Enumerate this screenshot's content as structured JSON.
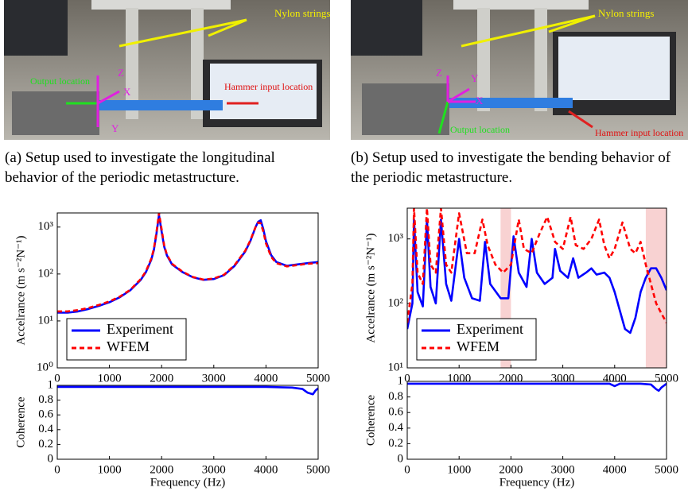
{
  "photos": [
    {
      "strings_label": "Nylon strings",
      "output_label": "Output location",
      "input_label": "Hammer input location",
      "axis_x": "X",
      "axis_y": "Y",
      "axis_z": "Z"
    },
    {
      "strings_label": "Nylon strings",
      "output_label": "Output location",
      "input_label": "Hammer input location",
      "axis_x": "X",
      "axis_y": "Y",
      "axis_z": "Z"
    }
  ],
  "captions": [
    "(a) Setup used to investigate the longitudinal behavior of the periodic metastructure.",
    "(b) Setup used to investigate the bending behavior of the periodic metastructure."
  ],
  "chart_data": [
    {
      "type": "line",
      "ylabel": "Accelrance (m s⁻²N⁻¹)",
      "log_y": true,
      "legend": "lower left",
      "xlim": [
        0,
        5000
      ],
      "xticks": [
        0,
        1000,
        2000,
        3000,
        4000,
        5000
      ],
      "ylim": [
        1,
        2000
      ],
      "yticks": [
        {
          "value": 1,
          "label": "10⁰"
        },
        {
          "value": 10,
          "label": "10¹"
        },
        {
          "value": 100,
          "label": "10²"
        },
        {
          "value": 1000,
          "label": "10³"
        }
      ],
      "series": [
        {
          "name": "Experiment",
          "color": "#0000ff",
          "dashed": false,
          "x": [
            0,
            200,
            400,
            600,
            800,
            1000,
            1200,
            1400,
            1600,
            1700,
            1800,
            1850,
            1900,
            1950,
            2000,
            2050,
            2100,
            2200,
            2400,
            2600,
            2800,
            3000,
            3200,
            3400,
            3600,
            3700,
            3800,
            3850,
            3900,
            3950,
            4000,
            4100,
            4200,
            4400,
            4600,
            4800,
            5000
          ],
          "values": [
            15,
            15,
            16,
            18,
            21,
            25,
            32,
            45,
            75,
            110,
            200,
            320,
            700,
            1800,
            800,
            380,
            250,
            160,
            110,
            85,
            75,
            78,
            95,
            150,
            300,
            500,
            1000,
            1300,
            1400,
            900,
            500,
            250,
            180,
            150,
            160,
            170,
            180
          ]
        },
        {
          "name": "WFEM",
          "color": "#ff0000",
          "dashed": true,
          "x": [
            0,
            200,
            400,
            600,
            800,
            1000,
            1200,
            1400,
            1600,
            1700,
            1800,
            1850,
            1900,
            1950,
            2000,
            2050,
            2100,
            2200,
            2400,
            2600,
            2800,
            3000,
            3200,
            3400,
            3600,
            3700,
            3800,
            3850,
            3900,
            3950,
            4000,
            4100,
            4200,
            4400,
            4600,
            4800,
            5000
          ],
          "values": [
            16,
            16,
            17,
            19,
            22,
            26,
            33,
            46,
            78,
            115,
            210,
            340,
            750,
            2000,
            900,
            400,
            260,
            165,
            112,
            86,
            76,
            80,
            97,
            155,
            310,
            520,
            1000,
            1250,
            1200,
            800,
            450,
            230,
            170,
            145,
            155,
            165,
            170
          ]
        }
      ]
    },
    {
      "type": "line",
      "ylabel": "Coherence",
      "xlabel": "Frequency (Hz)",
      "xlim": [
        0,
        5000
      ],
      "xticks": [
        0,
        1000,
        2000,
        3000,
        4000,
        5000
      ],
      "ylim": [
        0,
        1
      ],
      "yticks": [
        0,
        0.2,
        0.4,
        0.6,
        0.8,
        1
      ],
      "series": [
        {
          "color": "#0000ff",
          "dashed": false,
          "x": [
            0,
            500,
            1000,
            1500,
            2000,
            2500,
            3000,
            3500,
            4000,
            4500,
            4700,
            4800,
            4900,
            4950,
            5000
          ],
          "values": [
            0.98,
            0.98,
            0.98,
            0.98,
            0.98,
            0.98,
            0.98,
            0.98,
            0.98,
            0.97,
            0.95,
            0.9,
            0.88,
            0.93,
            0.96
          ]
        }
      ]
    },
    {
      "type": "line",
      "ylabel": "Accelrance (m s⁻²N⁻¹)",
      "log_y": true,
      "legend": "lower left",
      "xlim": [
        0,
        5000
      ],
      "xticks": [
        0,
        1000,
        2000,
        3000,
        4000,
        5000
      ],
      "ylim": [
        10,
        3000
      ],
      "yticks": [
        {
          "value": 10,
          "label": "10¹"
        },
        {
          "value": 100,
          "label": "10²"
        },
        {
          "value": 1000,
          "label": "10³"
        }
      ],
      "shaded_ranges": [
        [
          1800,
          2000
        ],
        [
          4600,
          5000
        ]
      ],
      "series": [
        {
          "name": "Experiment",
          "color": "#0000ff",
          "dashed": false,
          "x": [
            0,
            100,
            130,
            200,
            300,
            380,
            450,
            550,
            650,
            750,
            850,
            1000,
            1100,
            1250,
            1400,
            1500,
            1600,
            1800,
            1950,
            2050,
            2150,
            2300,
            2400,
            2500,
            2650,
            2800,
            2850,
            2950,
            3100,
            3200,
            3300,
            3450,
            3550,
            3650,
            3800,
            3900,
            4000,
            4200,
            4300,
            4400,
            4500,
            4600,
            4700,
            4800,
            4900,
            5000
          ],
          "values": [
            40,
            100,
            2000,
            150,
            90,
            2000,
            180,
            100,
            2000,
            200,
            110,
            1000,
            250,
            120,
            110,
            900,
            200,
            120,
            120,
            1100,
            300,
            180,
            1000,
            300,
            200,
            250,
            700,
            320,
            250,
            500,
            250,
            300,
            350,
            280,
            300,
            250,
            150,
            40,
            35,
            60,
            150,
            250,
            350,
            350,
            250,
            160
          ]
        },
        {
          "name": "WFEM",
          "color": "#ff0000",
          "dashed": true,
          "x": [
            0,
            100,
            130,
            200,
            300,
            380,
            450,
            550,
            650,
            750,
            850,
            1000,
            1150,
            1300,
            1450,
            1550,
            1700,
            1850,
            2000,
            2150,
            2250,
            2400,
            2550,
            2700,
            2850,
            3000,
            3150,
            3250,
            3400,
            3550,
            3700,
            3800,
            3900,
            4000,
            4150,
            4300,
            4400,
            4500,
            4600,
            4700,
            4800,
            4900,
            5000
          ],
          "values": [
            50,
            200,
            3000,
            300,
            200,
            3000,
            400,
            300,
            3000,
            400,
            300,
            2500,
            600,
            600,
            2000,
            800,
            400,
            300,
            400,
            2000,
            700,
            600,
            1200,
            2200,
            900,
            700,
            2200,
            800,
            700,
            1000,
            2000,
            800,
            500,
            700,
            1800,
            700,
            600,
            900,
            400,
            200,
            100,
            70,
            50
          ]
        }
      ]
    },
    {
      "type": "line",
      "ylabel": "Coherence",
      "xlabel": "Frequency (Hz)",
      "xlim": [
        0,
        5000
      ],
      "xticks": [
        0,
        1000,
        2000,
        3000,
        4000,
        5000
      ],
      "ylim": [
        0,
        1
      ],
      "yticks": [
        0,
        0.2,
        0.4,
        0.6,
        0.8,
        1
      ],
      "series": [
        {
          "color": "#0000ff",
          "dashed": false,
          "x": [
            0,
            500,
            1000,
            1500,
            2000,
            2500,
            3000,
            3500,
            3900,
            4000,
            4100,
            4500,
            4700,
            4800,
            4850,
            4900,
            5000
          ],
          "values": [
            0.97,
            0.97,
            0.97,
            0.97,
            0.97,
            0.97,
            0.97,
            0.97,
            0.97,
            0.94,
            0.97,
            0.97,
            0.96,
            0.9,
            0.88,
            0.92,
            0.97
          ]
        }
      ]
    }
  ]
}
